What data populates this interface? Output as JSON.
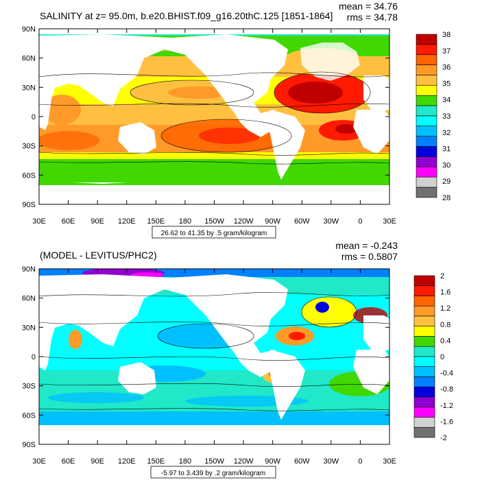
{
  "panels": [
    {
      "title": "SALINITY at z=  95.0m, b.e20.BHIST.f09_g16.20thC.125 [1851-1864]",
      "mean_label": "mean = 34.76",
      "rms_label": "rms = 34.78",
      "range_label": "26.62 to 41.35 by .5 gram/kilogram",
      "lat_ticks": [
        "90N",
        "60N",
        "30N",
        "0",
        "30S",
        "60S",
        "90S"
      ],
      "lon_ticks": [
        "30E",
        "60E",
        "90E",
        "120E",
        "150E",
        "180",
        "150W",
        "120W",
        "90W",
        "60W",
        "30W",
        "0",
        "30E"
      ],
      "legend": {
        "labels": [
          "38",
          "37",
          "36",
          "35",
          "34",
          "33",
          "32",
          "31",
          "30",
          "29",
          "28"
        ],
        "colors": [
          "#c00000",
          "#ff1a00",
          "#ff6400",
          "#ff9a28",
          "#ffc040",
          "#ffff00",
          "#40d800",
          "#20e8c8",
          "#00ffff",
          "#00c0ff",
          "#0080ff",
          "#0000e0",
          "#9000d0",
          "#ff00ff",
          "#d0d0d0",
          "#707070"
        ]
      }
    },
    {
      "title": "(MODEL - LEVITUS/PHC2)",
      "mean_label": "mean = -0.243",
      "rms_label": "rms = 0.5807",
      "range_label": "-5.97 to 3.439 by .2 gram/kilogram",
      "lat_ticks": [
        "90N",
        "60N",
        "30N",
        "0",
        "30S",
        "60S",
        "90S"
      ],
      "lon_ticks": [
        "30E",
        "60E",
        "90E",
        "120E",
        "150E",
        "180",
        "150W",
        "120W",
        "90W",
        "60W",
        "30W",
        "0",
        "30E"
      ],
      "legend": {
        "labels": [
          "2",
          "1.6",
          "1.2",
          "0.8",
          "0.4",
          "0",
          "-0.4",
          "-0.8",
          "-1.2",
          "-1.6",
          "-2"
        ],
        "colors": [
          "#c00000",
          "#ff1a00",
          "#ff6400",
          "#ff9a28",
          "#ffc040",
          "#ffff00",
          "#40d800",
          "#20e8c8",
          "#00ffff",
          "#00c0ff",
          "#0080ff",
          "#0000e0",
          "#9000d0",
          "#ff00ff",
          "#d0d0d0",
          "#707070"
        ]
      }
    }
  ]
}
